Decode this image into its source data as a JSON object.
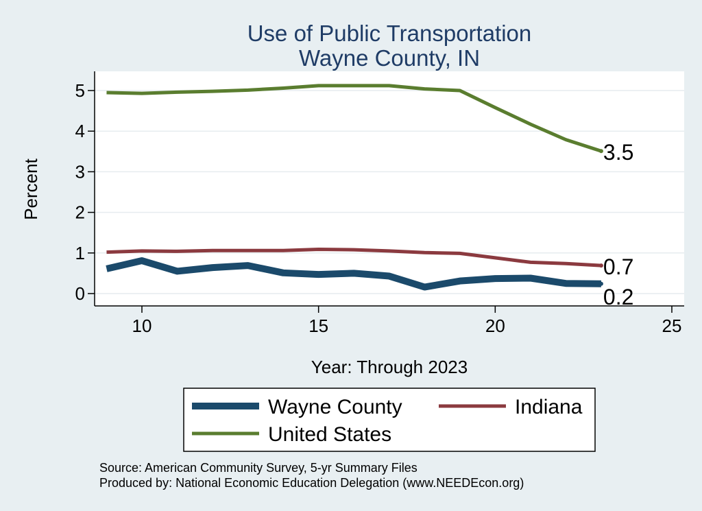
{
  "chart_data": {
    "type": "line",
    "title": "Use of Public Transportation",
    "subtitle": "Wayne County, IN",
    "xlabel": "Year: Through 2023",
    "ylabel": "Percent",
    "xlim": [
      9,
      25
    ],
    "ylim": [
      0,
      5
    ],
    "xticks": [
      "10",
      "15",
      "20",
      "25"
    ],
    "yticks": [
      "0",
      "1",
      "2",
      "3",
      "4",
      "5"
    ],
    "grid": true,
    "x": [
      9,
      10,
      11,
      12,
      13,
      14,
      15,
      16,
      17,
      18,
      19,
      20,
      21,
      22,
      23
    ],
    "series": [
      {
        "name": "Wayne County",
        "color": "#1b4a6b",
        "values": [
          0.61,
          0.81,
          0.55,
          0.64,
          0.69,
          0.51,
          0.47,
          0.5,
          0.43,
          0.16,
          0.31,
          0.37,
          0.38,
          0.25,
          0.24
        ],
        "end_label": "0.2"
      },
      {
        "name": "Indiana",
        "color": "#8b3a3f",
        "values": [
          1.02,
          1.05,
          1.04,
          1.06,
          1.06,
          1.06,
          1.09,
          1.08,
          1.05,
          1.01,
          0.99,
          0.88,
          0.77,
          0.74,
          0.69
        ],
        "end_label": "0.7"
      },
      {
        "name": "United States",
        "color": "#5a7d2f",
        "values": [
          4.95,
          4.93,
          4.96,
          4.98,
          5.01,
          5.06,
          5.12,
          5.12,
          5.12,
          5.04,
          5.0,
          4.58,
          4.17,
          3.79,
          3.51
        ],
        "end_label": "3.5"
      }
    ],
    "legend": {
      "position": "bottom",
      "items": [
        "Wayne County",
        "Indiana",
        "United States"
      ]
    },
    "notes": [
      "Source: American Community Survey, 5-yr Summary Files",
      "Produced by: National Economic Education Delegation (www.NEEDEcon.org)"
    ]
  }
}
